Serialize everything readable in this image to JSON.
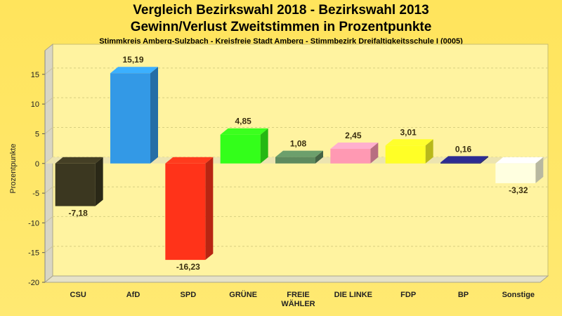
{
  "header": {
    "title_line1": "Vergleich Bezirkswahl 2018 - Bezirkswahl 2013",
    "title_line2": "Gewinn/Verlust Zweitstimmen in Prozentpunkte",
    "subtitle": "Stimmkreis Amberg-Sulzbach - Kreisfreie Stadt Amberg - Stimmbezirk Dreifaltigkeitsschule I (0005)"
  },
  "chart_data": {
    "type": "bar",
    "title": "Vergleich Bezirkswahl 2018 - Bezirkswahl 2013",
    "subtitle": "Gewinn/Verlust Zweitstimmen in Prozentpunkte",
    "xlabel": "",
    "ylabel": "Prozentpunkte",
    "ylim": [
      -20,
      19
    ],
    "yticks": [
      15,
      10,
      5,
      0,
      -5,
      -10,
      -15,
      -20
    ],
    "grid": true,
    "categories": [
      "CSU",
      "AfD",
      "SPD",
      "GRÜNE",
      "FREIE WÄHLER",
      "DIE LINKE",
      "FDP",
      "BP",
      "Sonstige"
    ],
    "category_labels": [
      [
        "CSU"
      ],
      [
        "AfD"
      ],
      [
        "SPD"
      ],
      [
        "GRÜNE"
      ],
      [
        "FREIE",
        "WÄHLER"
      ],
      [
        "DIE LINKE"
      ],
      [
        "FDP"
      ],
      [
        "BP"
      ],
      [
        "Sonstige"
      ]
    ],
    "values": [
      -7.18,
      15.19,
      -16.23,
      4.85,
      1.08,
      2.45,
      3.01,
      0.16,
      -3.32
    ],
    "value_labels": [
      "-7,18",
      "15,19",
      "-16,23",
      "4,85",
      "1,08",
      "2,45",
      "3,01",
      "0,16",
      "-3,32"
    ],
    "colors": [
      "#3b3720",
      "#3399e6",
      "#ff3319",
      "#33ff1a",
      "#5e8a5e",
      "#ff99b3",
      "#ffff26",
      "#26267f",
      "#ffffe0"
    ]
  }
}
